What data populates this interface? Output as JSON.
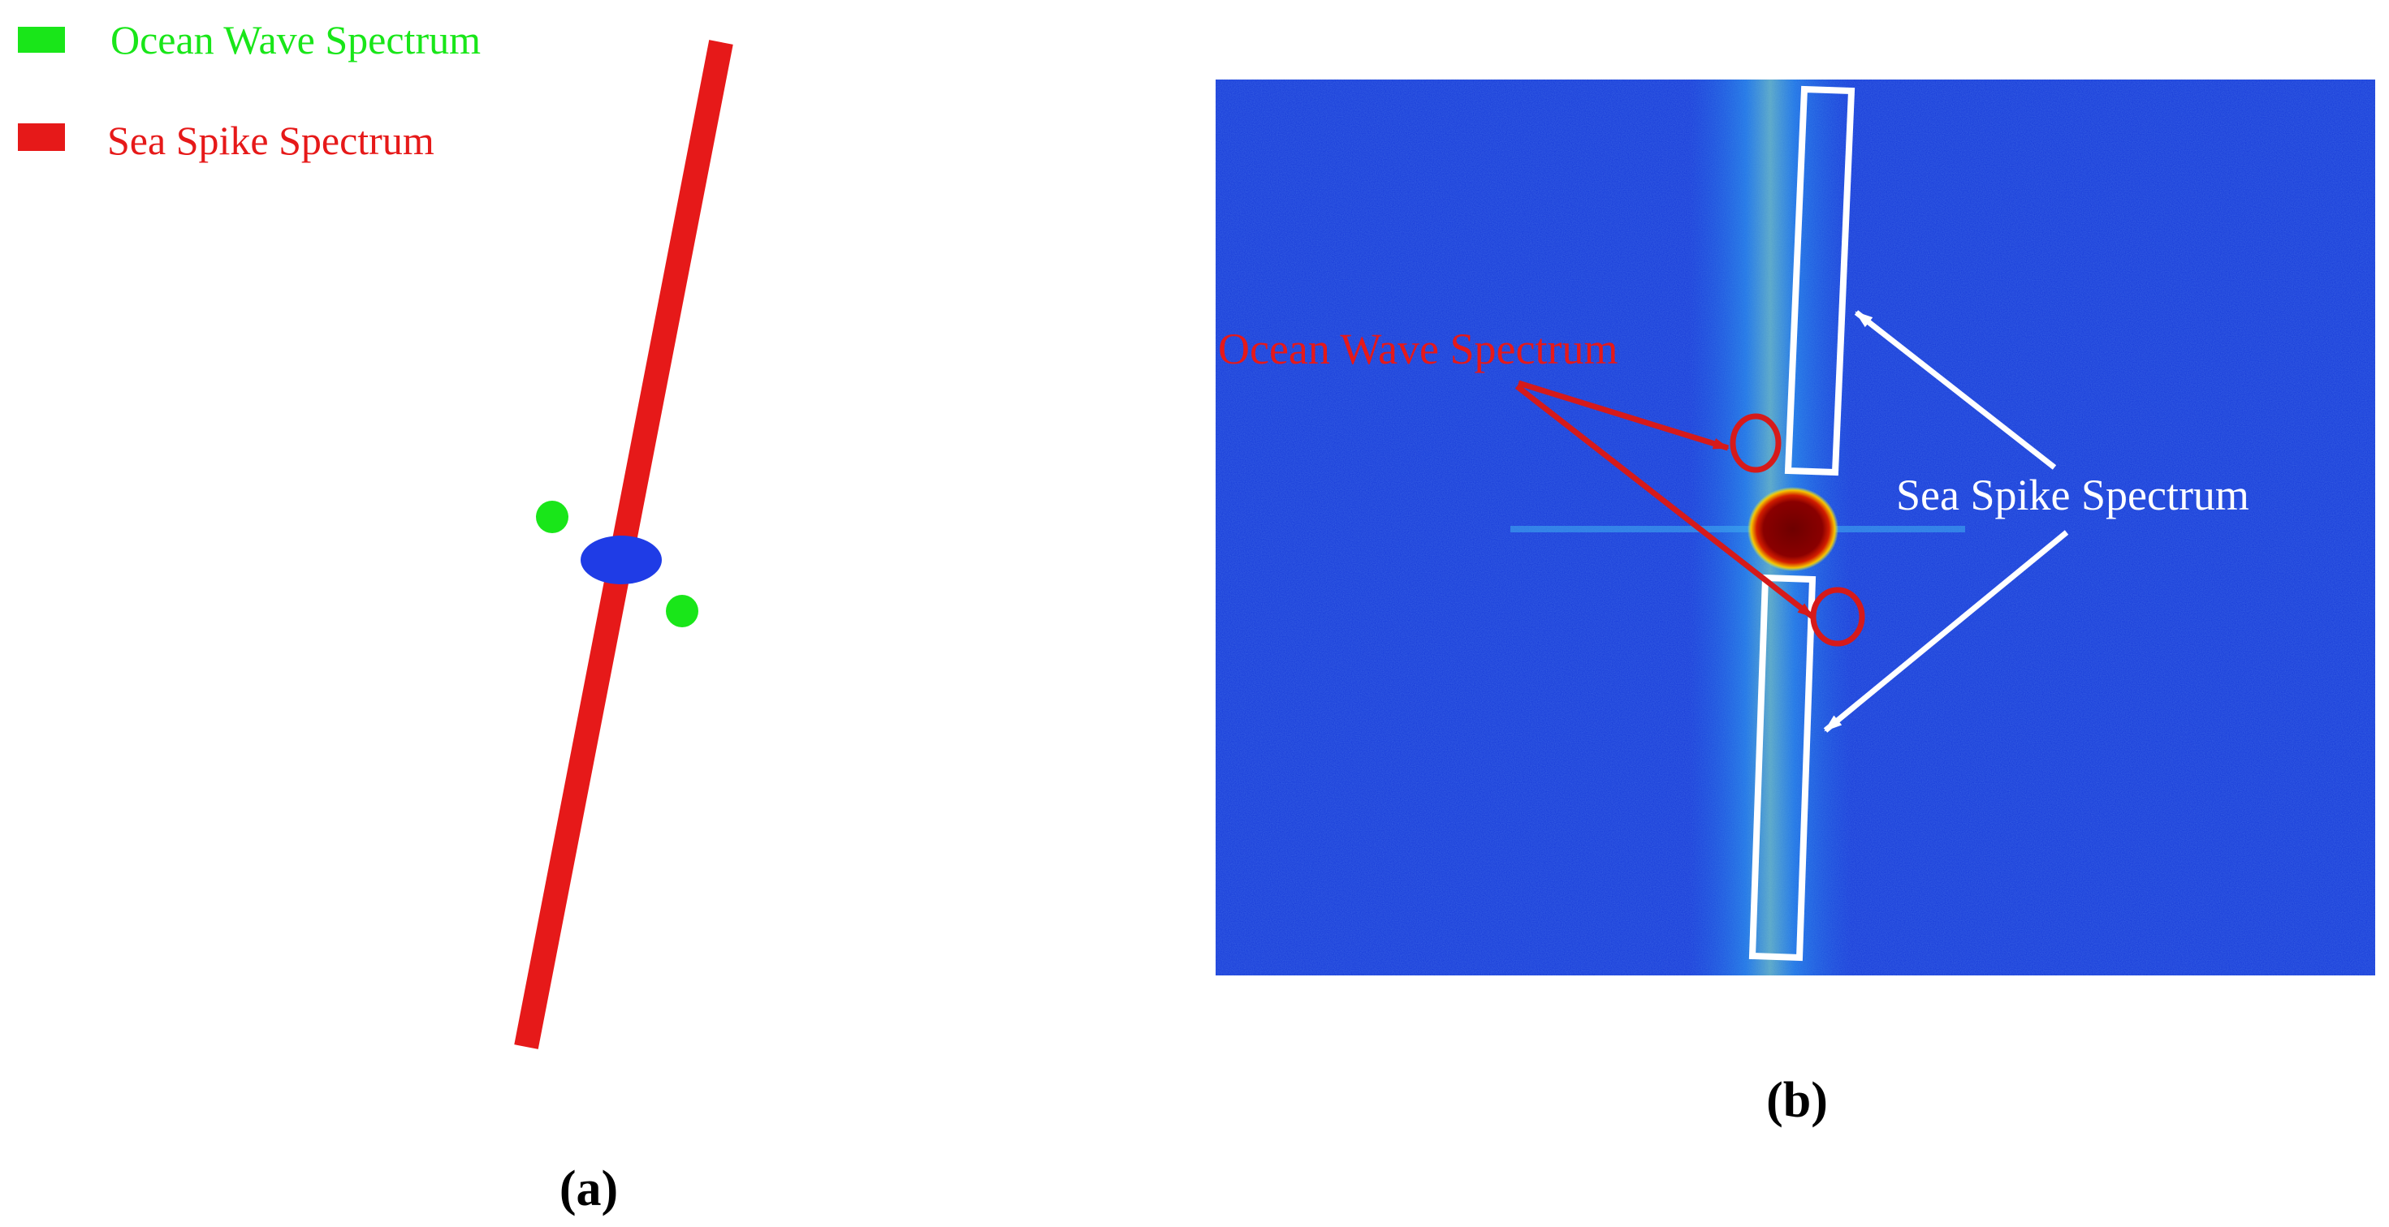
{
  "panel_a": {
    "legend": [
      {
        "label": "Ocean Wave Spectrum",
        "color": "#19e619"
      },
      {
        "label": "Sea Spike Spectrum",
        "color": "#e61919"
      }
    ],
    "caption": "(a)",
    "ellipse_color": "#1f3ce6"
  },
  "panel_b": {
    "ocean_label": "Ocean Wave Spectrum",
    "ocean_label_color": "#e61919",
    "spike_label": "Sea Spike Spectrum",
    "spike_label_color": "#ffffff",
    "caption": "(b)",
    "background_color": "#1538d8"
  }
}
